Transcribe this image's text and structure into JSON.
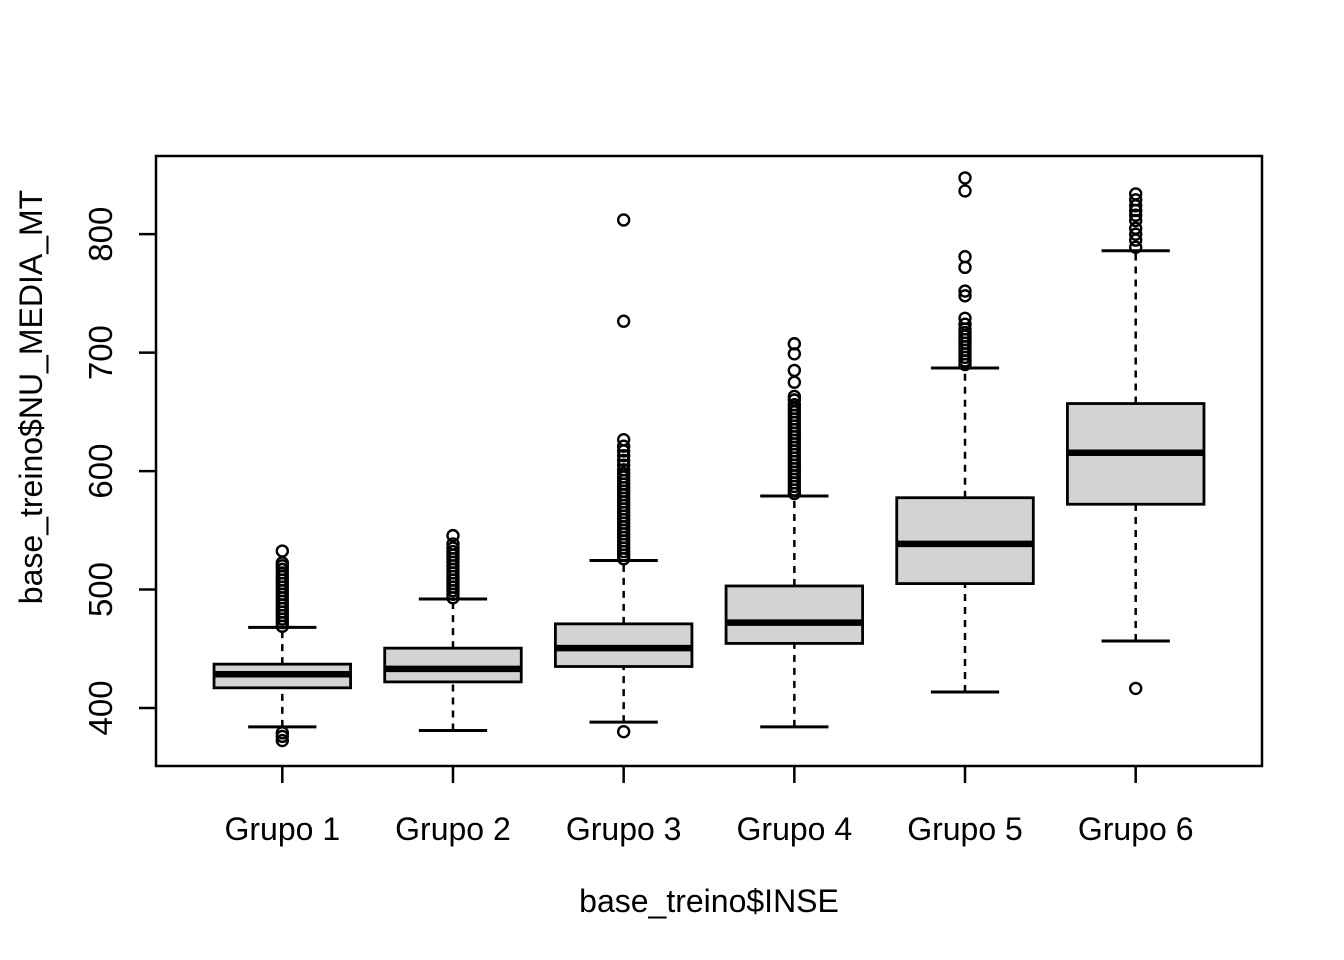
{
  "figure": {
    "background": "#ffffff"
  },
  "chart_data": {
    "type": "boxplot",
    "title": "",
    "xlabel": "base_treino$INSE",
    "ylabel": "base_treino$NU_MEDIA_MT",
    "categories": [
      "Grupo 1",
      "Grupo 2",
      "Grupo 3",
      "Grupo 4",
      "Grupo 5",
      "Grupo 6"
    ],
    "y_ticks": [
      400,
      500,
      600,
      700,
      800
    ],
    "ylim": [
      351,
      866
    ],
    "xlim": [
      0.26,
      6.74
    ],
    "grid": "off",
    "legend": "none",
    "box_width": 0.8,
    "cap_width": 0.4,
    "box_fill": "#d3d3d3",
    "line_color": "#000000",
    "groups": [
      {
        "label": "Grupo 1",
        "whislo": 384,
        "q1": 417,
        "med": 428.5,
        "q3": 437,
        "whishi": 468,
        "outliers": [
          372.5,
          376,
          379,
          469,
          472,
          475,
          478,
          481,
          484,
          487,
          490,
          493,
          496,
          499,
          502,
          505,
          508,
          511,
          514,
          517,
          520,
          522.5,
          532.5
        ]
      },
      {
        "label": "Grupo 2",
        "whislo": 381,
        "q1": 422,
        "med": 433,
        "q3": 450.5,
        "whishi": 492,
        "outliers": [
          493,
          496,
          499,
          502,
          505,
          508,
          511,
          514,
          517,
          520,
          523,
          526,
          529,
          532,
          535,
          538.5,
          545.5
        ]
      },
      {
        "label": "Grupo 3",
        "whislo": 388,
        "q1": 435,
        "med": 450.5,
        "q3": 471,
        "whishi": 524.5,
        "outliers": [
          380,
          526,
          529,
          532,
          535,
          538,
          541,
          544,
          547,
          550,
          553,
          556,
          559,
          562,
          565,
          568,
          571,
          574,
          577,
          580,
          583,
          586,
          589,
          592,
          595,
          598,
          601,
          605,
          609,
          613,
          617,
          621,
          626.5,
          726.5,
          812
        ]
      },
      {
        "label": "Grupo 4",
        "whislo": 384,
        "q1": 454.5,
        "med": 472,
        "q3": 503,
        "whishi": 579,
        "outliers": [
          581,
          584,
          587,
          590,
          593,
          596,
          599,
          602,
          605,
          608,
          611,
          614,
          617,
          620,
          623,
          626,
          629,
          632,
          635,
          638,
          641,
          644,
          647,
          650,
          653,
          656,
          660,
          663,
          675,
          685,
          699,
          707.5
        ]
      },
      {
        "label": "Grupo 5",
        "whislo": 413.5,
        "q1": 505,
        "med": 538.5,
        "q3": 577.5,
        "whishi": 687,
        "outliers": [
          690,
          693,
          696,
          699,
          702,
          705,
          708,
          711,
          714,
          717,
          720,
          724,
          729,
          748,
          752,
          772,
          781,
          836.5,
          847.5
        ]
      },
      {
        "label": "Grupo 6",
        "whislo": 456.5,
        "q1": 572,
        "med": 615.5,
        "q3": 657,
        "whishi": 786,
        "outliers": [
          416.5,
          789,
          795,
          800,
          805,
          811.5,
          816,
          820,
          824,
          829,
          834
        ]
      }
    ]
  }
}
